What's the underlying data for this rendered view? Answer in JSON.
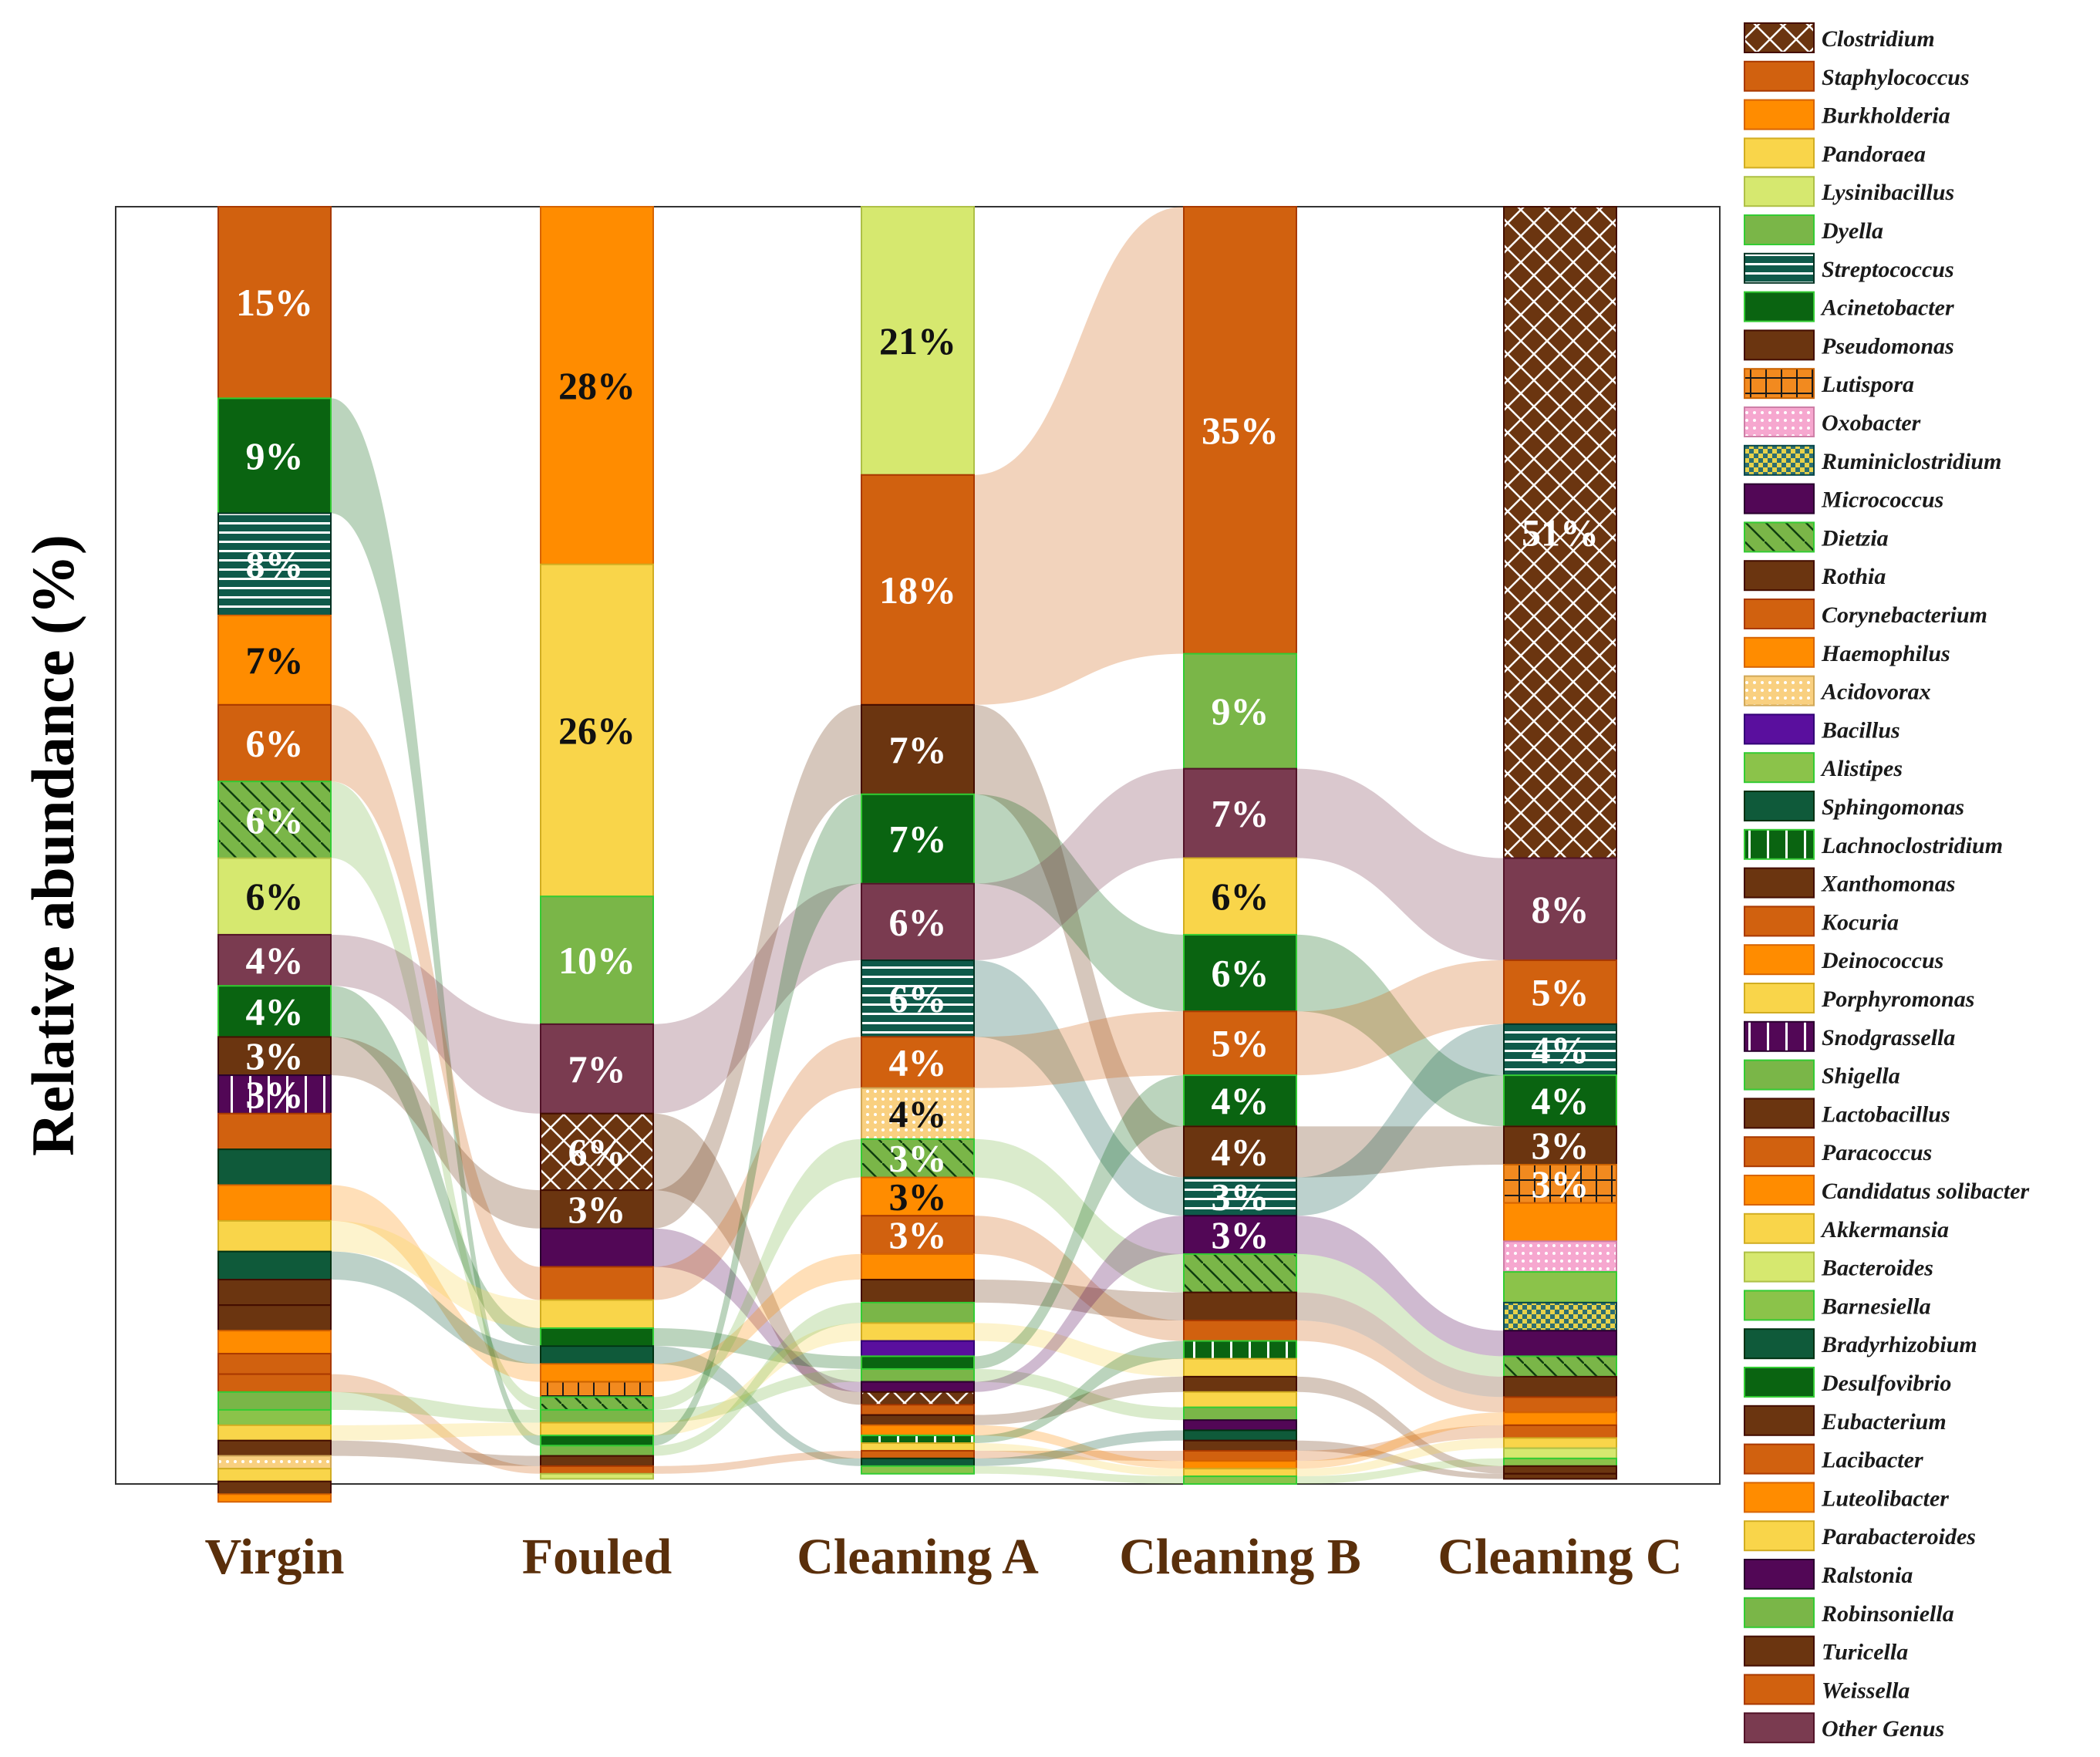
{
  "chart_data": {
    "type": "stacked-bar-alluvial",
    "ylabel": "Relative abundance (%)",
    "categories": [
      "Virgin",
      "Fouled",
      "Cleaning A",
      "Cleaning B",
      "Cleaning C"
    ],
    "ylim": [
      0,
      100
    ],
    "legend_position": "right",
    "genera": [
      {
        "name": "Clostridium",
        "color": "#6b3510",
        "pattern": "crosshatch"
      },
      {
        "name": "Staphylococcus",
        "color": "#d1610f",
        "pattern": "solid"
      },
      {
        "name": "Burkholderia",
        "color": "#ff8c00",
        "pattern": "solid"
      },
      {
        "name": "Pandoraea",
        "color": "#f9d54a",
        "pattern": "solid"
      },
      {
        "name": "Lysinibacillus",
        "color": "#d6e86f",
        "pattern": "solid"
      },
      {
        "name": "Dyella",
        "color": "#7ab648",
        "pattern": "solid"
      },
      {
        "name": "Streptococcus",
        "color": "#0f5a4a",
        "pattern": "hstripes"
      },
      {
        "name": "Acinetobacter",
        "color": "#0a6411",
        "pattern": "solid"
      },
      {
        "name": "Pseudomonas",
        "color": "#6b3510",
        "pattern": "solid"
      },
      {
        "name": "Lutispora",
        "color": "#f28a1f",
        "pattern": "grid"
      },
      {
        "name": "Oxobacter",
        "color": "#f6a7cf",
        "pattern": "dots"
      },
      {
        "name": "Ruminiclostridium",
        "color": "#2d6e72",
        "pattern": "checker"
      },
      {
        "name": "Micrococcus",
        "color": "#520756",
        "pattern": "solid"
      },
      {
        "name": "Dietzia",
        "color": "#7ab648",
        "pattern": "diag"
      },
      {
        "name": "Rothia",
        "color": "#6b3510",
        "pattern": "solid"
      },
      {
        "name": "Corynebacterium",
        "color": "#d1610f",
        "pattern": "solid"
      },
      {
        "name": "Haemophilus",
        "color": "#ff8c00",
        "pattern": "solid"
      },
      {
        "name": "Acidovorax",
        "color": "#f9d080",
        "pattern": "dots"
      },
      {
        "name": "Bacillus",
        "color": "#5a0f9e",
        "pattern": "solid"
      },
      {
        "name": "Alistipes",
        "color": "#8bc34a",
        "pattern": "solid"
      },
      {
        "name": "Sphingomonas",
        "color": "#0f5a3a",
        "pattern": "solid"
      },
      {
        "name": "Lachnoclostridium",
        "color": "#0a6411",
        "pattern": "vbars"
      },
      {
        "name": "Xanthomonas",
        "color": "#6b3510",
        "pattern": "solid"
      },
      {
        "name": "Kocuria",
        "color": "#d1610f",
        "pattern": "solid"
      },
      {
        "name": "Deinococcus",
        "color": "#ff8c00",
        "pattern": "solid"
      },
      {
        "name": "Porphyromonas",
        "color": "#f9d54a",
        "pattern": "solid"
      },
      {
        "name": "Snodgrassella",
        "color": "#520756",
        "pattern": "vbars"
      },
      {
        "name": "Shigella",
        "color": "#7ab648",
        "pattern": "solid"
      },
      {
        "name": "Lactobacillus",
        "color": "#6b3510",
        "pattern": "solid"
      },
      {
        "name": "Paracoccus",
        "color": "#d1610f",
        "pattern": "solid"
      },
      {
        "name": "Candidatus solibacter",
        "color": "#ff8c00",
        "pattern": "solid"
      },
      {
        "name": "Akkermansia",
        "color": "#f9d54a",
        "pattern": "solid"
      },
      {
        "name": "Bacteroides",
        "color": "#d6e86f",
        "pattern": "solid"
      },
      {
        "name": "Barnesiella",
        "color": "#8bc34a",
        "pattern": "solid"
      },
      {
        "name": "Bradyrhizobium",
        "color": "#0f5a3a",
        "pattern": "solid"
      },
      {
        "name": "Desulfovibrio",
        "color": "#0a6411",
        "pattern": "solid"
      },
      {
        "name": "Eubacterium",
        "color": "#6b3510",
        "pattern": "solid"
      },
      {
        "name": "Lacibacter",
        "color": "#d1610f",
        "pattern": "solid"
      },
      {
        "name": "Luteolibacter",
        "color": "#ff8c00",
        "pattern": "solid"
      },
      {
        "name": "Parabacteroides",
        "color": "#f9d54a",
        "pattern": "solid"
      },
      {
        "name": "Ralstonia",
        "color": "#520756",
        "pattern": "solid"
      },
      {
        "name": "Robinsoniella",
        "color": "#7ab648",
        "pattern": "solid"
      },
      {
        "name": "Turicella",
        "color": "#6b3510",
        "pattern": "solid"
      },
      {
        "name": "Weissella",
        "color": "#d1610f",
        "pattern": "solid"
      },
      {
        "name": "Other Genus",
        "color": "#7a3b50",
        "pattern": "solid"
      }
    ],
    "stacks": [
      {
        "sample": "Virgin",
        "segments": [
          {
            "genus": "Staphylococcus",
            "value": 15,
            "label": "15%"
          },
          {
            "genus": "Acinetobacter",
            "value": 9,
            "label": "9%"
          },
          {
            "genus": "Streptococcus",
            "value": 8,
            "label": "8%"
          },
          {
            "genus": "Haemophilus",
            "value": 7,
            "label": "7%"
          },
          {
            "genus": "Corynebacterium",
            "value": 6,
            "label": "6%"
          },
          {
            "genus": "Dietzia",
            "value": 6,
            "label": "6%"
          },
          {
            "genus": "Lysinibacillus",
            "value": 6,
            "label": "6%"
          },
          {
            "genus": "Other Genus",
            "value": 4,
            "label": "4%"
          },
          {
            "genus": "Desulfovibrio",
            "value": 4,
            "label": "4%"
          },
          {
            "genus": "Pseudomonas",
            "value": 3,
            "label": "3%"
          },
          {
            "genus": "Snodgrassella",
            "value": 3,
            "label": "3%"
          },
          {
            "genus": "Kocuria",
            "value": 2.8
          },
          {
            "genus": "Sphingomonas",
            "value": 2.8
          },
          {
            "genus": "Deinococcus",
            "value": 2.8
          },
          {
            "genus": "Porphyromonas",
            "value": 2.4
          },
          {
            "genus": "Bradyrhizobium",
            "value": 2.2
          },
          {
            "genus": "Rothia",
            "value": 2.0
          },
          {
            "genus": "Eubacterium",
            "value": 2.0
          },
          {
            "genus": "Luteolibacter",
            "value": 1.8
          },
          {
            "genus": "Lacibacter",
            "value": 1.6
          },
          {
            "genus": "Weissella",
            "value": 1.4
          },
          {
            "genus": "Robinsoniella",
            "value": 1.4
          },
          {
            "genus": "Barnesiella",
            "value": 1.2
          },
          {
            "genus": "Akkermansia",
            "value": 1.2
          },
          {
            "genus": "Turicella",
            "value": 1.2
          },
          {
            "genus": "Acidovorax",
            "value": 1.0
          },
          {
            "genus": "Parabacteroides",
            "value": 1.0
          },
          {
            "genus": "Xanthomonas",
            "value": 1.0
          },
          {
            "genus": "Candidatus solibacter",
            "value": 0.6
          }
        ]
      },
      {
        "sample": "Fouled",
        "segments": [
          {
            "genus": "Burkholderia",
            "value": 28,
            "label": "28%"
          },
          {
            "genus": "Pandoraea",
            "value": 26,
            "label": "26%"
          },
          {
            "genus": "Dyella",
            "value": 10,
            "label": "10%"
          },
          {
            "genus": "Other Genus",
            "value": 7,
            "label": "7%"
          },
          {
            "genus": "Clostridium",
            "value": 6,
            "label": "6%"
          },
          {
            "genus": "Pseudomonas",
            "value": 3,
            "label": "3%"
          },
          {
            "genus": "Micrococcus",
            "value": 3.0
          },
          {
            "genus": "Corynebacterium",
            "value": 2.6
          },
          {
            "genus": "Porphyromonas",
            "value": 2.2
          },
          {
            "genus": "Desulfovibrio",
            "value": 1.4
          },
          {
            "genus": "Bradyrhizobium",
            "value": 1.4
          },
          {
            "genus": "Deinococcus",
            "value": 1.4
          },
          {
            "genus": "Lutispora",
            "value": 1.2
          },
          {
            "genus": "Dietzia",
            "value": 1.0
          },
          {
            "genus": "Robinsoniella",
            "value": 1.0
          },
          {
            "genus": "Akkermansia",
            "value": 1.0
          },
          {
            "genus": "Acinetobacter",
            "value": 0.8
          },
          {
            "genus": "Shigella",
            "value": 0.8
          },
          {
            "genus": "Turicella",
            "value": 0.8
          },
          {
            "genus": "Weissella",
            "value": 0.6
          },
          {
            "genus": "Bacteroides",
            "value": 0.4
          }
        ]
      },
      {
        "sample": "Cleaning A",
        "segments": [
          {
            "genus": "Lysinibacillus",
            "value": 21,
            "label": "21%"
          },
          {
            "genus": "Staphylococcus",
            "value": 18,
            "label": "18%"
          },
          {
            "genus": "Pseudomonas",
            "value": 7,
            "label": "7%"
          },
          {
            "genus": "Acinetobacter",
            "value": 7,
            "label": "7%"
          },
          {
            "genus": "Other Genus",
            "value": 6,
            "label": "6%"
          },
          {
            "genus": "Streptococcus",
            "value": 6,
            "label": "6%"
          },
          {
            "genus": "Corynebacterium",
            "value": 4,
            "label": "4%"
          },
          {
            "genus": "Acidovorax",
            "value": 4,
            "label": "4%"
          },
          {
            "genus": "Dietzia",
            "value": 3,
            "label": "3%"
          },
          {
            "genus": "Haemophilus",
            "value": 3,
            "label": "3%"
          },
          {
            "genus": "Kocuria",
            "value": 3,
            "label": "3%"
          },
          {
            "genus": "Deinococcus",
            "value": 2.0
          },
          {
            "genus": "Rothia",
            "value": 1.8
          },
          {
            "genus": "Shigella",
            "value": 1.6
          },
          {
            "genus": "Akkermansia",
            "value": 1.4
          },
          {
            "genus": "Bacillus",
            "value": 1.2
          },
          {
            "genus": "Desulfovibrio",
            "value": 1.0
          },
          {
            "genus": "Robinsoniella",
            "value": 1.0
          },
          {
            "genus": "Micrococcus",
            "value": 0.8
          },
          {
            "genus": "Clostridium",
            "value": 1.0
          },
          {
            "genus": "Lacibacter",
            "value": 0.8
          },
          {
            "genus": "Eubacterium",
            "value": 0.8
          },
          {
            "genus": "Luteolibacter",
            "value": 0.8
          },
          {
            "genus": "Lachnoclostridium",
            "value": 0.6
          },
          {
            "genus": "Parabacteroides",
            "value": 0.6
          },
          {
            "genus": "Weissella",
            "value": 0.6
          },
          {
            "genus": "Bradyrhizobium",
            "value": 0.6
          },
          {
            "genus": "Barnesiella",
            "value": 0.6
          }
        ]
      },
      {
        "sample": "Cleaning B",
        "segments": [
          {
            "genus": "Staphylococcus",
            "value": 35,
            "label": "35%"
          },
          {
            "genus": "Dyella",
            "value": 9,
            "label": "9%"
          },
          {
            "genus": "Other Genus",
            "value": 7,
            "label": "7%"
          },
          {
            "genus": "Pandoraea",
            "value": 6,
            "label": "6%"
          },
          {
            "genus": "Acinetobacter",
            "value": 6,
            "label": "6%"
          },
          {
            "genus": "Corynebacterium",
            "value": 5,
            "label": "5%"
          },
          {
            "genus": "Desulfovibrio",
            "value": 4,
            "label": "4%"
          },
          {
            "genus": "Pseudomonas",
            "value": 4,
            "label": "4%"
          },
          {
            "genus": "Streptococcus",
            "value": 3,
            "label": "3%"
          },
          {
            "genus": "Micrococcus",
            "value": 3,
            "label": "3%"
          },
          {
            "genus": "Dietzia",
            "value": 3.0
          },
          {
            "genus": "Rothia",
            "value": 2.2
          },
          {
            "genus": "Kocuria",
            "value": 1.6
          },
          {
            "genus": "Lachnoclostridium",
            "value": 1.4
          },
          {
            "genus": "Akkermansia",
            "value": 1.4
          },
          {
            "genus": "Eubacterium",
            "value": 1.2
          },
          {
            "genus": "Porphyromonas",
            "value": 1.2
          },
          {
            "genus": "Robinsoniella",
            "value": 1.0
          },
          {
            "genus": "Ralstonia",
            "value": 0.8
          },
          {
            "genus": "Bradyrhizobium",
            "value": 0.8
          },
          {
            "genus": "Turicella",
            "value": 0.8
          },
          {
            "genus": "Weissella",
            "value": 0.8
          },
          {
            "genus": "Luteolibacter",
            "value": 0.6
          },
          {
            "genus": "Parabacteroides",
            "value": 0.6
          },
          {
            "genus": "Barnesiella",
            "value": 0.6
          }
        ]
      },
      {
        "sample": "Cleaning C",
        "segments": [
          {
            "genus": "Clostridium",
            "value": 51,
            "label": "51%"
          },
          {
            "genus": "Other Genus",
            "value": 8,
            "label": "8%"
          },
          {
            "genus": "Corynebacterium",
            "value": 5,
            "label": "5%"
          },
          {
            "genus": "Streptococcus",
            "value": 4,
            "label": "4%"
          },
          {
            "genus": "Acinetobacter",
            "value": 4,
            "label": "4%"
          },
          {
            "genus": "Pseudomonas",
            "value": 3,
            "label": "3%"
          },
          {
            "genus": "Lutispora",
            "value": 3,
            "label": "3%"
          },
          {
            "genus": "Haemophilus",
            "value": 3.0
          },
          {
            "genus": "Oxobacter",
            "value": 2.4
          },
          {
            "genus": "Alistipes",
            "value": 2.4
          },
          {
            "genus": "Ruminiclostridium",
            "value": 2.2
          },
          {
            "genus": "Micrococcus",
            "value": 2.0
          },
          {
            "genus": "Dietzia",
            "value": 1.6
          },
          {
            "genus": "Rothia",
            "value": 1.6
          },
          {
            "genus": "Kocuria",
            "value": 1.2
          },
          {
            "genus": "Luteolibacter",
            "value": 1.0
          },
          {
            "genus": "Weissella",
            "value": 1.0
          },
          {
            "genus": "Parabacteroides",
            "value": 0.8
          },
          {
            "genus": "Bacteroides",
            "value": 0.8
          },
          {
            "genus": "Barnesiella",
            "value": 0.6
          },
          {
            "genus": "Eubacterium",
            "value": 0.6
          },
          {
            "genus": "Turicella",
            "value": 0.4
          }
        ]
      }
    ]
  }
}
